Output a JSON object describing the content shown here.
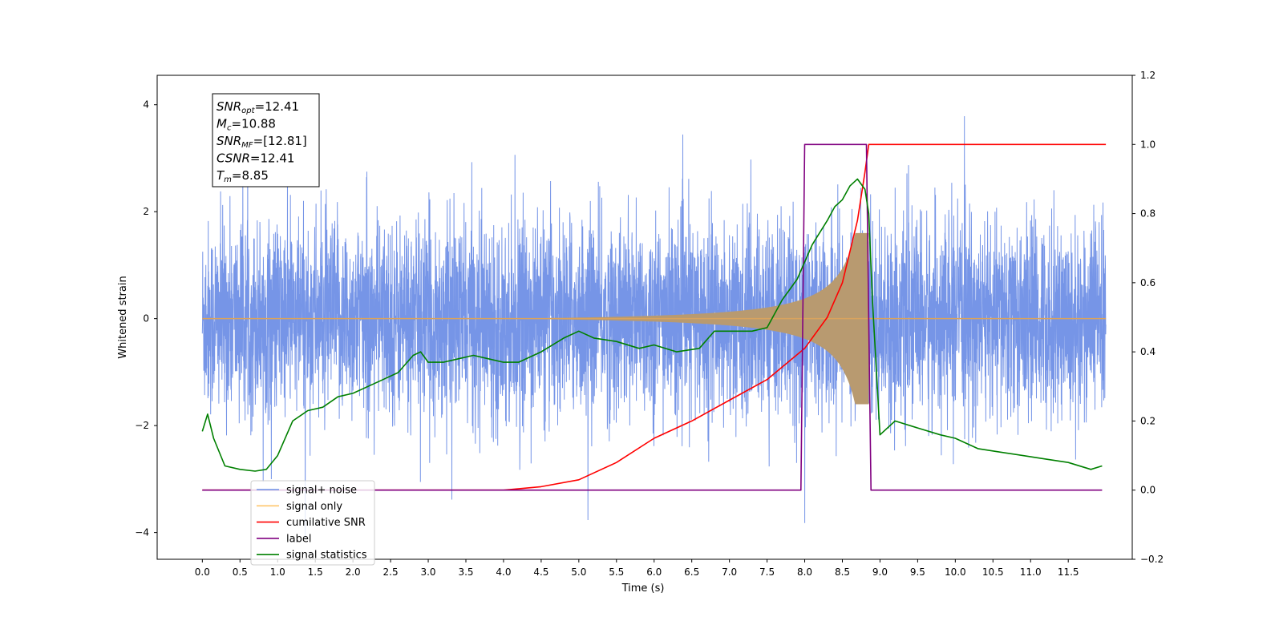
{
  "chart_data": {
    "type": "line",
    "title": "",
    "xlabel": "Time (s)",
    "ylabel": "Whitened strain",
    "xlim": [
      -0.6,
      12.35
    ],
    "ylim": [
      -4.5,
      4.55
    ],
    "y2lim": [
      -0.2,
      1.2
    ],
    "grid": false,
    "x_ticks": [
      "0.0",
      "0.5",
      "1.0",
      "1.5",
      "2.0",
      "2.5",
      "3.0",
      "3.5",
      "4.0",
      "4.5",
      "5.0",
      "5.5",
      "6.0",
      "6.5",
      "7.0",
      "7.5",
      "8.0",
      "8.5",
      "9.0",
      "9.5",
      "10.0",
      "10.5",
      "11.0",
      "11.5"
    ],
    "y_ticks": [
      "4",
      "2",
      "0",
      "−2",
      "−4"
    ],
    "y2_ticks": [
      "1.2",
      "1.0",
      "0.8",
      "0.6",
      "0.4",
      "0.2",
      "0.0",
      "−0.2"
    ],
    "annotation": {
      "lines": [
        {
          "base": "SNR",
          "sub": "opt",
          "value": "=12.41"
        },
        {
          "base": "M",
          "sub": "c",
          "value": "=10.88"
        },
        {
          "base": "SNR",
          "sub": "MF",
          "value": "=[12.81]"
        },
        {
          "base": "CSNR",
          "sub": "",
          "value": "=12.41"
        },
        {
          "base": "T",
          "sub": "m",
          "value": "=8.85"
        }
      ]
    },
    "legend": {
      "placement": "lower-left",
      "entries": [
        "signal+ noise",
        "signal only",
        "cumilative SNR",
        "label",
        "signal statistics"
      ]
    },
    "series": [
      {
        "name": "signal+ noise",
        "color": "#6f8fe6",
        "axis": "left",
        "noise_std": 0.9,
        "t_range": [
          0.0,
          12.0
        ]
      },
      {
        "name": "signal only",
        "color": "#d9a35e",
        "axis": "left",
        "chirp_start": 4.0,
        "chirp_end": 8.85,
        "peak_amplitude": 1.6
      },
      {
        "name": "cumilative SNR",
        "color": "#ff0000",
        "axis": "right",
        "x": [
          0.0,
          4.0,
          4.5,
          5.0,
          5.5,
          6.0,
          6.5,
          7.0,
          7.5,
          8.0,
          8.3,
          8.5,
          8.7,
          8.8,
          8.85,
          9.0,
          12.0
        ],
        "y": [
          0.0,
          0.0,
          0.01,
          0.03,
          0.08,
          0.15,
          0.2,
          0.26,
          0.32,
          0.41,
          0.5,
          0.6,
          0.78,
          0.92,
          1.0,
          1.0,
          1.0
        ]
      },
      {
        "name": "label",
        "color": "#800080",
        "axis": "right",
        "x": [
          0.0,
          7.95,
          8.0,
          8.82,
          8.88,
          11.95
        ],
        "y": [
          0.0,
          0.0,
          1.0,
          1.0,
          0.0,
          0.0
        ]
      },
      {
        "name": "signal statistics",
        "color": "#008000",
        "axis": "right",
        "x": [
          0.0,
          0.07,
          0.15,
          0.3,
          0.5,
          0.7,
          0.85,
          1.0,
          1.2,
          1.4,
          1.6,
          1.8,
          2.0,
          2.2,
          2.4,
          2.6,
          2.8,
          2.9,
          3.0,
          3.2,
          3.4,
          3.6,
          3.8,
          4.0,
          4.2,
          4.5,
          4.8,
          5.0,
          5.2,
          5.5,
          5.8,
          6.0,
          6.3,
          6.6,
          6.8,
          7.0,
          7.3,
          7.5,
          7.7,
          7.9,
          8.1,
          8.3,
          8.4,
          8.5,
          8.6,
          8.7,
          8.8,
          8.85,
          8.9,
          9.0,
          9.2,
          9.5,
          9.8,
          10.0,
          10.3,
          10.6,
          10.9,
          11.2,
          11.5,
          11.8,
          11.95
        ],
        "y": [
          0.17,
          0.22,
          0.15,
          0.07,
          0.06,
          0.055,
          0.06,
          0.1,
          0.2,
          0.23,
          0.24,
          0.27,
          0.28,
          0.3,
          0.32,
          0.34,
          0.39,
          0.4,
          0.37,
          0.37,
          0.38,
          0.39,
          0.38,
          0.37,
          0.37,
          0.4,
          0.44,
          0.46,
          0.44,
          0.43,
          0.41,
          0.42,
          0.4,
          0.41,
          0.46,
          0.46,
          0.46,
          0.47,
          0.55,
          0.61,
          0.71,
          0.78,
          0.82,
          0.84,
          0.88,
          0.9,
          0.87,
          0.8,
          0.55,
          0.16,
          0.2,
          0.18,
          0.16,
          0.15,
          0.12,
          0.11,
          0.1,
          0.09,
          0.08,
          0.06,
          0.07
        ]
      }
    ]
  }
}
